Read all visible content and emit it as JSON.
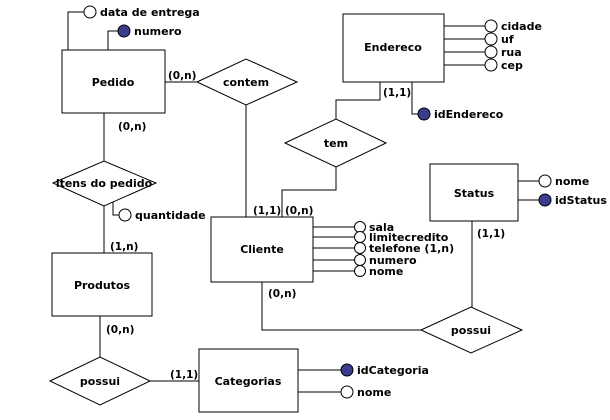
{
  "entities": {
    "pedido": "Pedido",
    "endereco": "Endereco",
    "status": "Status",
    "cliente": "Cliente",
    "produtos": "Produtos",
    "categorias": "Categorias"
  },
  "relationships": {
    "contem": "contem",
    "tem": "tem",
    "itens_do_pedido": "itens do pedido",
    "possui_status": "possui",
    "possui_categoria": "possui"
  },
  "attributes": {
    "pedido": [
      "data de entrega",
      "numero"
    ],
    "endereco": [
      "cidade",
      "uf",
      "rua",
      "cep",
      "idEndereco"
    ],
    "status": [
      "nome",
      "idStatus"
    ],
    "cliente": [
      "sala",
      "limitecredito",
      "telefone (1,n)",
      "numero",
      "nome"
    ],
    "itens": [
      "quantidade"
    ],
    "categorias": [
      "idCategoria",
      "nome"
    ]
  },
  "cardinalities": {
    "pedido_contem": "(0,n)",
    "pedido_itens": "(0,n)",
    "endereco_tem": "(1,1)",
    "cliente_tem_left": "(1,1)",
    "cliente_tem_right": "(0,n)",
    "status_possui": "(1,1)",
    "cliente_possui": "(0,n)",
    "produtos_itens": "(1,n)",
    "produtos_possui": "(0,n)",
    "categorias_possui": "(1,1)"
  },
  "key_attributes": [
    "numero",
    "idEndereco",
    "idStatus",
    "idCategoria"
  ]
}
